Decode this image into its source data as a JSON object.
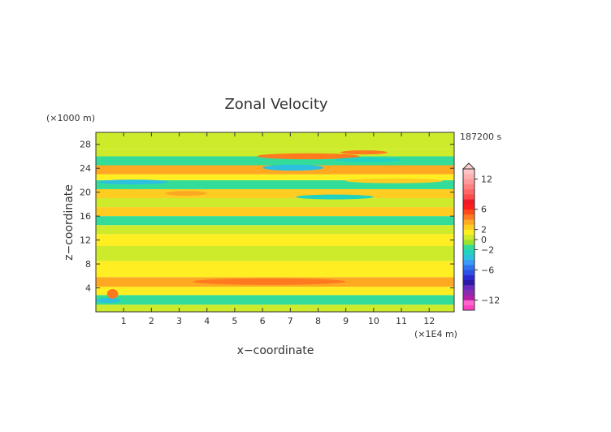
{
  "chart_data": {
    "type": "heatmap",
    "title": "Zonal Velocity",
    "xlabel": "x−coordinate",
    "ylabel": "z−coordinate",
    "x_unit": "(×1E4 m)",
    "y_unit": "(×1000 m)",
    "time_label": "187200 s",
    "xlim": [
      0,
      12.9
    ],
    "ylim": [
      0,
      30
    ],
    "x_ticks": [
      1,
      2,
      3,
      4,
      5,
      6,
      7,
      8,
      9,
      10,
      11,
      12
    ],
    "y_ticks": [
      4,
      8,
      12,
      16,
      20,
      24,
      28
    ],
    "colorbar": {
      "levels": [
        -14,
        -13,
        -12,
        -11,
        -10,
        -9,
        -8,
        -7,
        -6,
        -5,
        -4,
        -3,
        -2,
        -1,
        0,
        1,
        2,
        3,
        4,
        5,
        6,
        7,
        8,
        9,
        10,
        11,
        12,
        13,
        14
      ],
      "colors": [
        "#ff40c0",
        "#ff66cc",
        "#b31fa8",
        "#8a2bb0",
        "#6a2ac0",
        "#2c1aa8",
        "#2a2ad0",
        "#2f52e6",
        "#2f72f0",
        "#3a9af5",
        "#2cc0e0",
        "#22d2c0",
        "#33dd99",
        "#9be22a",
        "#cdeb2a",
        "#ffee22",
        "#ffcc22",
        "#ffa822",
        "#ff7a1e",
        "#ff4a1a",
        "#ff1e1e",
        "#ee1a28",
        "#ff4a4a",
        "#ff6666",
        "#ff8080",
        "#ff9a9a",
        "#ffb0b0",
        "#ffc4c4"
      ],
      "tick_labels": [
        {
          "value": 12,
          "label": "12"
        },
        {
          "value": 6,
          "label": "6"
        },
        {
          "value": 2,
          "label": "2"
        },
        {
          "value": 0,
          "label": "0"
        },
        {
          "value": -2,
          "label": "−2"
        },
        {
          "value": -6,
          "label": "−6"
        },
        {
          "value": -12,
          "label": "−12"
        }
      ]
    },
    "bands": [
      {
        "z": [
          0,
          1.2
        ],
        "value": 0.5
      },
      {
        "z": [
          1.2,
          2.8
        ],
        "value": -1.8
      },
      {
        "z": [
          2.8,
          4.2
        ],
        "value": 1.0
      },
      {
        "z": [
          4.2,
          5.8
        ],
        "value": 3.5
      },
      {
        "z": [
          5.8,
          8.5
        ],
        "value": 1.2
      },
      {
        "z": [
          8.5,
          11.0
        ],
        "value": 0.3
      },
      {
        "z": [
          11.0,
          13.0
        ],
        "value": 1.5
      },
      {
        "z": [
          13.0,
          14.5
        ],
        "value": 0.5
      },
      {
        "z": [
          14.5,
          16.0
        ],
        "value": -1.2
      },
      {
        "z": [
          16.0,
          17.5
        ],
        "value": 2.8
      },
      {
        "z": [
          17.5,
          19.0
        ],
        "value": 0.8
      },
      {
        "z": [
          19.0,
          20.5
        ],
        "value": 2.5
      },
      {
        "z": [
          20.5,
          22.0
        ],
        "value": -1.8
      },
      {
        "z": [
          22.0,
          23.0
        ],
        "value": 1.0
      },
      {
        "z": [
          23.0,
          24.5
        ],
        "value": 3.0
      },
      {
        "z": [
          24.5,
          26.0
        ],
        "value": -1.2
      },
      {
        "z": [
          26.0,
          27.2
        ],
        "value": 0.8
      },
      {
        "z": [
          27.2,
          30.0
        ],
        "value": 0.3
      }
    ],
    "features": [
      {
        "x": [
          5.8,
          9.5
        ],
        "z": [
          25.5,
          26.5
        ],
        "value": 4.0
      },
      {
        "x": [
          6.0,
          8.2
        ],
        "z": [
          23.6,
          24.6
        ],
        "value": -4.0
      },
      {
        "x": [
          8.8,
          10.5
        ],
        "z": [
          26.3,
          27.0
        ],
        "value": 4.5
      },
      {
        "x": [
          8.6,
          11.0
        ],
        "z": [
          25.0,
          25.8
        ],
        "value": -2.5
      },
      {
        "x": [
          7.2,
          10.0
        ],
        "z": [
          18.8,
          19.6
        ],
        "value": -3.0
      },
      {
        "x": [
          0.1,
          2.6
        ],
        "z": [
          21.3,
          22.1
        ],
        "value": -3.5
      },
      {
        "x": [
          2.5,
          4.0
        ],
        "z": [
          19.4,
          20.2
        ],
        "value": 3.5
      },
      {
        "x": [
          9.0,
          12.5
        ],
        "z": [
          21.5,
          22.3
        ],
        "value": 2.5
      },
      {
        "x": [
          3.5,
          9.0
        ],
        "z": [
          4.5,
          5.6
        ],
        "value": 4.5
      },
      {
        "x": [
          0.0,
          0.9
        ],
        "z": [
          1.5,
          2.3
        ],
        "value": -4.0
      },
      {
        "x": [
          0.4,
          0.8
        ],
        "z": [
          2.2,
          3.8
        ],
        "value": 4.0
      },
      {
        "x": [
          11.2,
          12.6
        ],
        "z": [
          1.8,
          2.6
        ],
        "value": -1.5
      }
    ]
  }
}
